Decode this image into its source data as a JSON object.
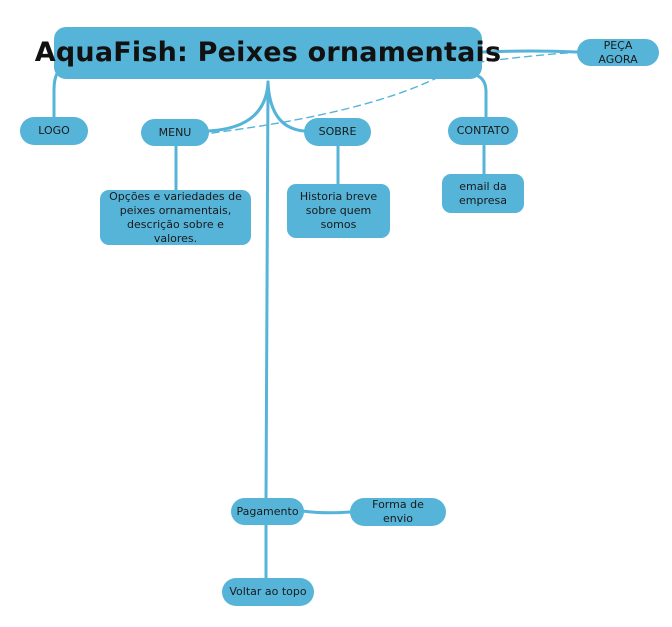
{
  "title": "AquaFish: Peixes ornamentais",
  "nodes": {
    "peca_agora": "PEÇA AGORA",
    "logo": "LOGO",
    "menu": "MENU",
    "sobre": "SOBRE",
    "contato": "CONTATO",
    "menu_desc": "Opções e variedades de peixes ornamentais, descrição sobre e valores.",
    "sobre_desc": "Historia breve sobre quem somos",
    "contato_desc": "email da empresa",
    "pagamento": "Pagamento",
    "forma_envio": "Forma de envio",
    "voltar_topo": "Voltar ao topo"
  },
  "colors": {
    "node_fill": "#55b4d8",
    "edge": "#55b4d8",
    "text": "#111111",
    "background": "#ffffff"
  }
}
